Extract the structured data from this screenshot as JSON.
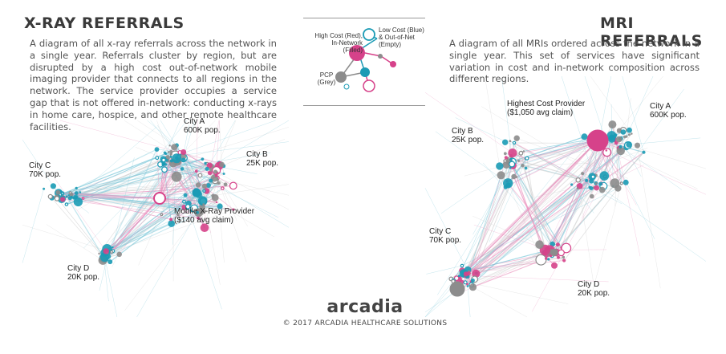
{
  "colors": {
    "pink": "#d6428a",
    "pink_light": "#e98fbc",
    "blue": "#1b9bb5",
    "blue_light": "#79c6d8",
    "grey": "#8c8c8c",
    "grey_light": "#c9c9c9"
  },
  "xray": {
    "title": "X-RAY REFERRALS",
    "description": "A diagram of all x-ray referrals across the network in a single year. Referrals cluster by region, but are disrupted by a high cost out-of-network mobile imaging provider that connects to all regions in the network. The service provider occupies a service gap that is not offered in-network: conducting x-rays in home care, hospice, and other remote healthcare facilities.",
    "city_a": "City A\n600K pop.",
    "city_b": "City B\n25K pop.",
    "city_c": "City C\n70K pop.",
    "city_d": "City D\n20K pop.",
    "provider": "Mobile X-Ray Provider\n($140 avg claim)"
  },
  "mri": {
    "title": "MRI REFERRALS",
    "description": "A diagram of all MRIs ordered across the network in a single year. This set of services have significant variation in cost and in-network composition across different regions.",
    "city_a": "City A\n600K pop.",
    "city_b": "City B\n25K pop.",
    "city_c": "City C\n70K pop.",
    "city_d": "City D\n20K pop.",
    "provider": "Highest Cost Provider\n($1,050 avg claim)"
  },
  "legend": {
    "high_cost": "High Cost (Red),\nIn-Network\n(Filled)",
    "low_cost": "Low Cost (Blue)\n& Out-of-Net\n(Empty)",
    "pcp": "PCP\n(Grey)"
  },
  "footer": {
    "brand": "arcadia",
    "copyright": "© 2017 ARCADIA HEALTHCARE SOLUTIONS"
  }
}
